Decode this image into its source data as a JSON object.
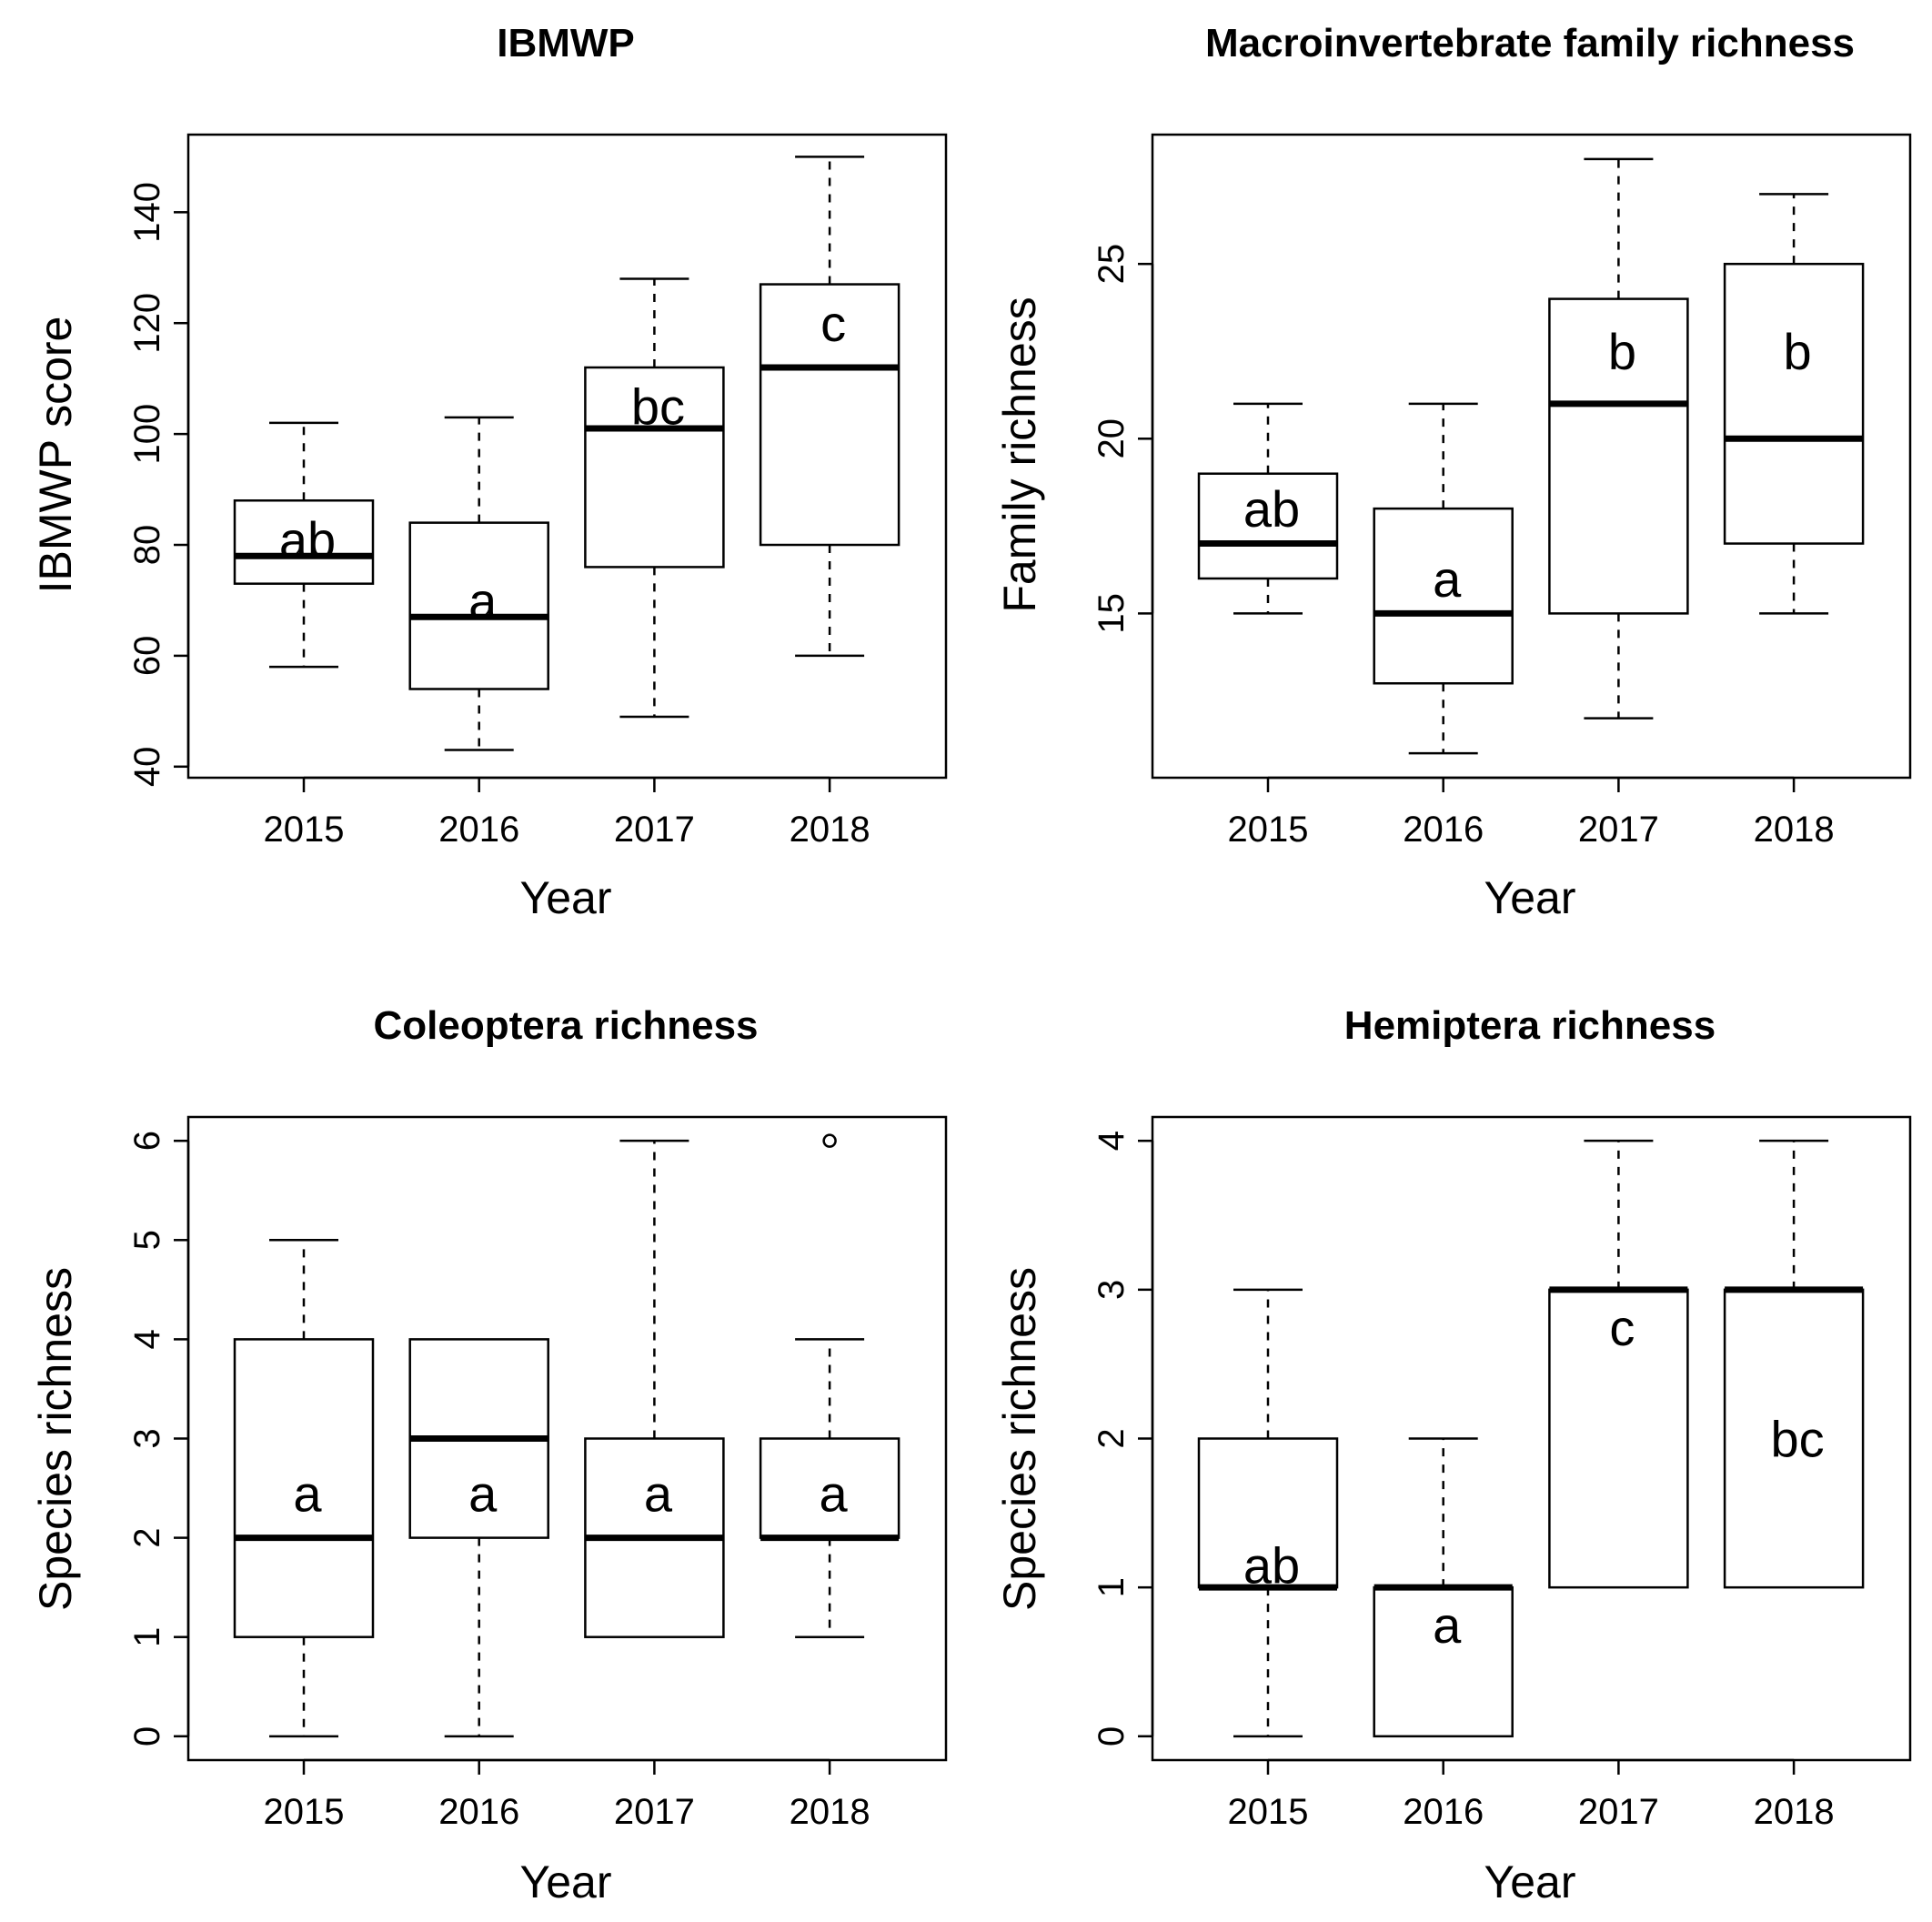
{
  "chart_data": [
    {
      "type": "box",
      "title": "IBMWP",
      "xlabel": "Year",
      "ylabel": "IBMWP score",
      "categories": [
        "2015",
        "2016",
        "2017",
        "2018"
      ],
      "ylim": [
        38,
        154
      ],
      "yticks": [
        40,
        60,
        80,
        100,
        120,
        140
      ],
      "boxes": [
        {
          "whisker_low": 58,
          "q1": 73,
          "median": 78,
          "q3": 88,
          "whisker_high": 102,
          "outliers": [],
          "letter": "ab",
          "letter_y": 81
        },
        {
          "whisker_low": 43,
          "q1": 54,
          "median": 67,
          "q3": 84,
          "whisker_high": 103,
          "outliers": [],
          "letter": "a",
          "letter_y": 70
        },
        {
          "whisker_low": 49,
          "q1": 76,
          "median": 101,
          "q3": 112,
          "whisker_high": 128,
          "outliers": [],
          "letter": "bc",
          "letter_y": 105
        },
        {
          "whisker_low": 60,
          "q1": 80,
          "median": 112,
          "q3": 127,
          "whisker_high": 150,
          "outliers": [],
          "letter": "c",
          "letter_y": 120
        }
      ]
    },
    {
      "type": "box",
      "title": "Macroinvertebrate family richness",
      "xlabel": "Year",
      "ylabel": "Family richness",
      "categories": [
        "2015",
        "2016",
        "2017",
        "2018"
      ],
      "ylim": [
        10.3,
        28.7
      ],
      "yticks": [
        15,
        20,
        25
      ],
      "boxes": [
        {
          "whisker_low": 15,
          "q1": 16,
          "median": 17,
          "q3": 19,
          "whisker_high": 21,
          "outliers": [],
          "letter": "ab",
          "letter_y": 18
        },
        {
          "whisker_low": 11,
          "q1": 13,
          "median": 15,
          "q3": 18,
          "whisker_high": 21,
          "outliers": [],
          "letter": "a",
          "letter_y": 16
        },
        {
          "whisker_low": 12,
          "q1": 15,
          "median": 21,
          "q3": 24,
          "whisker_high": 28,
          "outliers": [],
          "letter": "b",
          "letter_y": 22.5
        },
        {
          "whisker_low": 15,
          "q1": 17,
          "median": 20,
          "q3": 25,
          "whisker_high": 27,
          "outliers": [],
          "letter": "b",
          "letter_y": 22.5
        }
      ]
    },
    {
      "type": "box",
      "title": "Coleoptera richness",
      "xlabel": "Year",
      "ylabel": "Species richness",
      "categories": [
        "2015",
        "2016",
        "2017",
        "2018"
      ],
      "ylim": [
        -0.24,
        6.24
      ],
      "yticks": [
        0,
        1,
        2,
        3,
        4,
        5,
        6
      ],
      "boxes": [
        {
          "whisker_low": 0,
          "q1": 1,
          "median": 2,
          "q3": 4,
          "whisker_high": 5,
          "outliers": [],
          "letter": "a",
          "letter_y": 2.45
        },
        {
          "whisker_low": 0,
          "q1": 2,
          "median": 3,
          "q3": 4,
          "whisker_high": 4,
          "outliers": [],
          "letter": "a",
          "letter_y": 2.45
        },
        {
          "whisker_low": 1,
          "q1": 1,
          "median": 2,
          "q3": 3,
          "whisker_high": 6,
          "outliers": [],
          "letter": "a",
          "letter_y": 2.45
        },
        {
          "whisker_low": 1,
          "q1": 2,
          "median": 2,
          "q3": 3,
          "whisker_high": 4,
          "outliers": [
            6
          ],
          "letter": "a",
          "letter_y": 2.45
        }
      ]
    },
    {
      "type": "box",
      "title": "Hemiptera richness",
      "xlabel": "Year",
      "ylabel": "Species richness",
      "categories": [
        "2015",
        "2016",
        "2017",
        "2018"
      ],
      "ylim": [
        -0.16,
        4.16
      ],
      "yticks": [
        0,
        1,
        2,
        3,
        4
      ],
      "boxes": [
        {
          "whisker_low": 0,
          "q1": 1,
          "median": 1,
          "q3": 2,
          "whisker_high": 3,
          "outliers": [],
          "letter": "ab",
          "letter_y": 1.15
        },
        {
          "whisker_low": 0,
          "q1": 0,
          "median": 1,
          "q3": 1,
          "whisker_high": 2,
          "outliers": [],
          "letter": "a",
          "letter_y": 0.75
        },
        {
          "whisker_low": 1,
          "q1": 1,
          "median": 3,
          "q3": 3,
          "whisker_high": 4,
          "outliers": [],
          "letter": "c",
          "letter_y": 2.75
        },
        {
          "whisker_low": 1,
          "q1": 1,
          "median": 3,
          "q3": 3,
          "whisker_high": 4,
          "outliers": [],
          "letter": "bc",
          "letter_y": 2.0
        }
      ]
    }
  ]
}
